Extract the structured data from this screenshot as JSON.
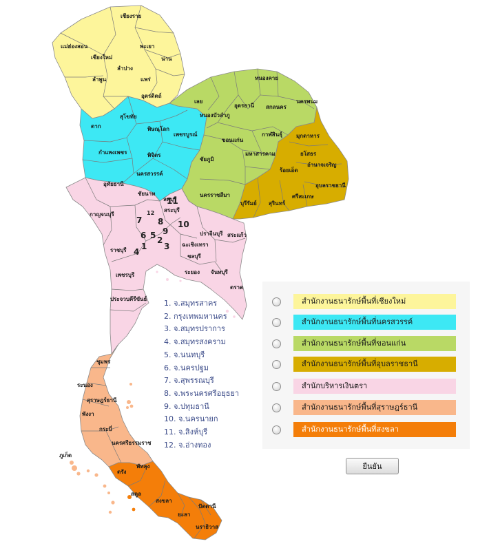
{
  "map": {
    "region_colors": {
      "chiang_mai": "#fdf59b",
      "nakhon_sawan": "#3de8f4",
      "khon_kaen": "#b9d965",
      "ubon": "#d7ad00",
      "finance": "#f9d5e5",
      "surat": "#f9b78b",
      "songkhla": "#f47e09"
    },
    "provinces": {
      "chiang_rai": "เชียงราย",
      "mae_hong_son": "แม่ฮ่องสอน",
      "chiang_mai": "เชียงใหม่",
      "phayao": "พะเยา",
      "nan": "น่าน",
      "lampang": "ลำปาง",
      "lamphun": "ลำพูน",
      "phrae": "แพร่",
      "uttaradit": "อุตรดิตถ์",
      "sukhothai": "สุโขทัย",
      "tak": "ตาก",
      "phitsanulok": "พิษณุโลก",
      "kamphaeng_phet": "กำแพงเพชร",
      "phichit": "พิจิตร",
      "phetchabun": "เพชรบูรณ์",
      "nakhon_sawan": "นครสวรรค์",
      "uthai_thani": "อุทัยธานี",
      "chainat": "ชัยนาท",
      "loei": "เลย",
      "nong_khai": "หนองคาย",
      "udon_thani": "อุดรธานี",
      "sakon_nakhon": "สกลนคร",
      "nakhon_phanom": "นครพนม",
      "nong_bua_lamphu": "หนองบัวลำภู",
      "khon_kaen": "ขอนแก่น",
      "kalasin": "กาฬสินธุ์",
      "mukdahan": "มุกดาหาร",
      "chaiyaphum": "ชัยภูมิ",
      "maha_sarakham": "มหาสารคาม",
      "roi_et": "ร้อยเอ็ด",
      "yasothon": "ยโสธร",
      "amnat_charoen": "อำนาจเจริญ",
      "nakhon_ratchasima": "นครราชสีมา",
      "ubon": "อุบลราชธานี",
      "buriram": "บุรีรัมย์",
      "surin": "สุรินทร์",
      "sisaket": "ศรีสะเกษ",
      "lopburi": "ลพบุรี",
      "kanchanaburi": "กาญจนบุรี",
      "saraburi": "สระบุรี",
      "ratchaburi": "ราชบุรี",
      "prachinburi": "ปราจีนบุรี",
      "chachoengsao": "ฉะเชิงเทรา",
      "sa_kaeo": "สระแก้ว",
      "chonburi": "ชลบุรี",
      "phetchaburi": "เพชรบุรี",
      "rayong": "ระยอง",
      "chanthaburi": "จันทบุรี",
      "trat": "ตราด",
      "prachuap": "ประจวบคีรีขันธ์",
      "chumphon": "ชุมพร",
      "ranong": "ระนอง",
      "surat_thani": "สุราษฎร์ธานี",
      "phang_nga": "พังงา",
      "krabi": "กระบี่",
      "nakhon_si_thammarat": "นครศรีธรรมราช",
      "phuket": "ภูเก็ต",
      "trang": "ตรัง",
      "phatthalung": "พัทลุง",
      "satun": "สตูล",
      "songkhla": "สงขลา",
      "pattani": "ปัตตานี",
      "yala": "ยะลา",
      "narathiwat": "นราธิวาส"
    },
    "central_numbers": [
      "1",
      "2",
      "3",
      "4",
      "5",
      "6",
      "7",
      "8",
      "9",
      "10",
      "11",
      "12"
    ]
  },
  "numbered_legend": [
    "1. จ.สมุทรสาคร",
    "2. กรุงเทพมหานคร",
    "3. จ.สมุทรปราการ",
    "4. จ.สมุทรสงคราม",
    "5. จ.นนทบุรี",
    "6. จ.นครปฐม",
    "7. จ.สุพรรณบุรี",
    "8. จ.พระนครศรีอยุธยา",
    "9. จ.ปทุมธานี",
    "10. จ.นครนายก",
    "11. จ.สิงห์บุรี",
    "12. จ.อ่างทอง"
  ],
  "options": [
    {
      "label": "สำนักงานธนารักษ์พื้นที่เชียงใหม่",
      "color": "#fdf59b",
      "text_color": "#1a1a1a"
    },
    {
      "label": "สำนักงานธนารักษ์พื้นที่นครสวรรค์",
      "color": "#3de8f4",
      "text_color": "#1a1a1a"
    },
    {
      "label": "สำนักงานธนารักษ์พื้นที่ขอนแก่น",
      "color": "#b9d965",
      "text_color": "#1a1a1a"
    },
    {
      "label": "สำนักงานธนารักษ์พื้นที่อุบลราชธานี",
      "color": "#d7ad00",
      "text_color": "#1a1a1a"
    },
    {
      "label": "สำนักบริหารเงินตรา",
      "color": "#f9d5e5",
      "text_color": "#1a1a1a"
    },
    {
      "label": "สำนักงานธนารักษ์พื้นที่สุราษฎร์ธานี",
      "color": "#f9b78b",
      "text_color": "#1a1a1a"
    },
    {
      "label": "สำนักงานธนารักษ์พื้นที่สงขลา",
      "color": "#f47e09",
      "text_color": "#ffffff"
    }
  ],
  "confirm_button": "ยืนยัน"
}
